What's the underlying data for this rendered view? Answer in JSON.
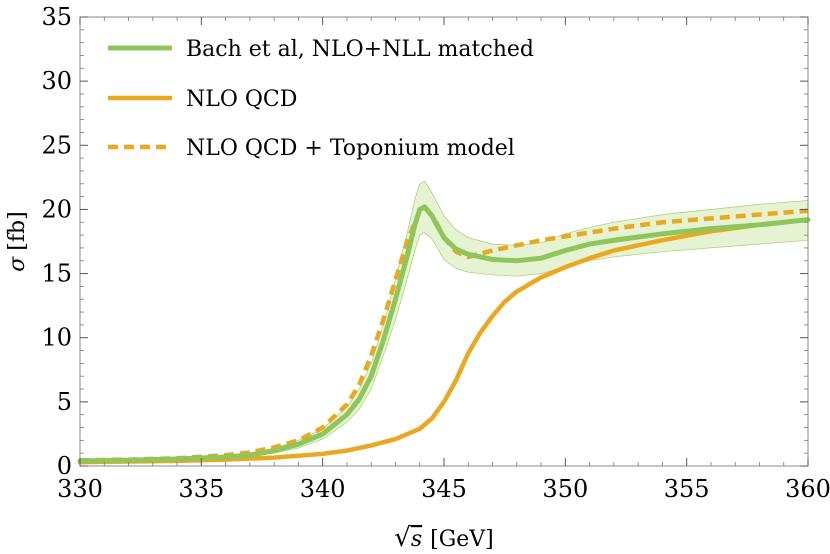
{
  "chart_data": {
    "type": "line",
    "title": "",
    "xlabel": "√s [GeV]",
    "xlabel_parts": {
      "root": "√",
      "var": "s",
      "unit": "[GeV]"
    },
    "ylabel": "σ [fb]",
    "ylabel_parts": {
      "var": "σ",
      "unit": "[fb]"
    },
    "xlim": [
      330,
      360
    ],
    "ylim": [
      0,
      35
    ],
    "xticks": [
      330,
      335,
      340,
      345,
      350,
      355,
      360
    ],
    "yticks": [
      0,
      5,
      10,
      15,
      20,
      25,
      30,
      35
    ],
    "grid": false,
    "legend_position": "top-left",
    "colors": {
      "green": "#8fc55a",
      "band": "#dcefc4",
      "orange": "#e9a820"
    },
    "series": [
      {
        "name": "Bach et al, NLO+NLL matched",
        "style": "solid",
        "color": "#8fc55a",
        "x": [
          330,
          332,
          334,
          336,
          337,
          338,
          339,
          340,
          341,
          341.5,
          342,
          342.5,
          343,
          343.5,
          343.8,
          344,
          344.2,
          344.5,
          345,
          345.5,
          346,
          347,
          348,
          349,
          350,
          351,
          352,
          354,
          356,
          358,
          360
        ],
        "values": [
          0.4,
          0.45,
          0.55,
          0.7,
          0.85,
          1.2,
          1.7,
          2.5,
          4.0,
          5.2,
          7.0,
          9.8,
          13.0,
          16.5,
          18.8,
          20.0,
          20.2,
          19.5,
          17.8,
          16.9,
          16.5,
          16.1,
          16.0,
          16.2,
          16.8,
          17.3,
          17.6,
          18.1,
          18.5,
          18.8,
          19.2
        ],
        "band_upper": [
          0.5,
          0.55,
          0.65,
          0.8,
          1.0,
          1.4,
          2.0,
          2.9,
          4.6,
          6.0,
          8.0,
          11.0,
          14.6,
          18.3,
          20.8,
          22.0,
          22.2,
          21.3,
          19.5,
          18.4,
          17.8,
          17.3,
          17.2,
          17.4,
          18.1,
          18.6,
          19.0,
          19.6,
          20.0,
          20.4,
          20.7
        ],
        "band_lower": [
          0.3,
          0.35,
          0.45,
          0.6,
          0.7,
          1.0,
          1.4,
          2.1,
          3.4,
          4.4,
          6.0,
          8.6,
          11.4,
          14.7,
          16.8,
          18.0,
          18.2,
          17.7,
          16.1,
          15.4,
          15.1,
          14.9,
          14.8,
          15.0,
          15.5,
          16.0,
          16.3,
          16.7,
          17.0,
          17.3,
          17.6
        ]
      },
      {
        "name": "NLO QCD",
        "style": "solid",
        "color": "#e9a820",
        "x": [
          330,
          332,
          334,
          336,
          338,
          340,
          341,
          342,
          343,
          344,
          344.5,
          345,
          345.5,
          346,
          346.5,
          347,
          347.5,
          348,
          349,
          350,
          351,
          352,
          353,
          354,
          356,
          358,
          360
        ],
        "values": [
          0.3,
          0.35,
          0.4,
          0.5,
          0.65,
          0.95,
          1.2,
          1.6,
          2.1,
          2.9,
          3.7,
          5.0,
          6.7,
          8.8,
          10.4,
          11.7,
          12.8,
          13.6,
          14.7,
          15.5,
          16.2,
          16.8,
          17.2,
          17.6,
          18.3,
          18.8,
          19.2
        ]
      },
      {
        "name": "NLO QCD + Toponium model",
        "style": "dashed",
        "color": "#e9a820",
        "x": [
          330,
          332,
          334,
          336,
          337,
          338,
          339,
          340,
          341,
          341.5,
          342,
          342.5,
          343,
          343.5,
          344,
          344.3,
          344.6,
          345,
          345.5,
          346,
          347,
          348,
          349,
          350,
          351,
          352,
          354,
          356,
          358,
          360
        ],
        "values": [
          0.45,
          0.5,
          0.6,
          0.85,
          1.05,
          1.45,
          2.0,
          3.0,
          4.8,
          6.3,
          8.6,
          11.4,
          14.5,
          17.6,
          19.9,
          20.0,
          19.3,
          17.8,
          16.7,
          16.3,
          16.8,
          17.2,
          17.6,
          17.9,
          18.2,
          18.5,
          19.0,
          19.3,
          19.6,
          19.9
        ]
      }
    ]
  }
}
